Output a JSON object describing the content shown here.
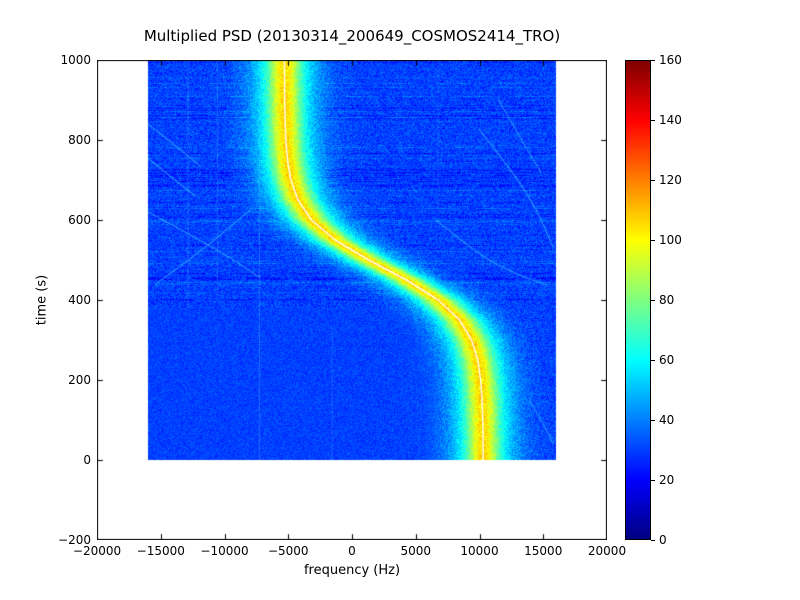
{
  "figure": {
    "title": "Multiplied PSD (20130314_200649_COSMOS2414_TRO)",
    "xlabel": "frequency (Hz)",
    "ylabel": "time (s)"
  },
  "axes": {
    "x_range": [
      -20000,
      20000
    ],
    "y_range": [
      -200,
      1000
    ],
    "x_tick_values": [
      -20000,
      -15000,
      -10000,
      -5000,
      0,
      5000,
      10000,
      15000,
      20000
    ],
    "x_tick_labels": [
      "−20000",
      "−15000",
      "−10000",
      "−5000",
      "0",
      "5000",
      "10000",
      "15000",
      "20000"
    ],
    "y_tick_values": [
      1000,
      800,
      600,
      400,
      200,
      0,
      -200
    ],
    "y_tick_labels": [
      "1000",
      "800",
      "600",
      "400",
      "200",
      "0",
      "−200"
    ]
  },
  "colorbar": {
    "min": 0,
    "max": 160,
    "tick_values": [
      0,
      20,
      40,
      60,
      80,
      100,
      120,
      140,
      160
    ],
    "tick_labels": [
      "0",
      "20",
      "40",
      "60",
      "80",
      "100",
      "120",
      "140",
      "160"
    ],
    "colormap": "jet",
    "colors": [
      "#00007f",
      "#0000ff",
      "#00ffff",
      "#ffff00",
      "#ff0000",
      "#7f0000"
    ]
  },
  "chart_data": {
    "type": "heatmap",
    "title": "Multiplied PSD (20130314_200649_COSMOS2414_TRO)",
    "xlabel": "frequency (Hz)",
    "ylabel": "time (s)",
    "colormap": "jet",
    "value_range": [
      0,
      160
    ],
    "x_extent": [
      -16000,
      16000
    ],
    "y_extent": [
      0,
      1000
    ],
    "background_level": 30,
    "noise_amplitude": 16,
    "band": {
      "description": "S-shaped satellite Doppler track, bright yellow-green core with cyan halo and thin white fitted curve",
      "core_amp": 36,
      "core_sigma_hz": 1150,
      "halo_amp": 40,
      "halo_sigma_hz": 2600
    },
    "white_curve": true,
    "ridge_points": [
      [
        0,
        10290
      ],
      [
        50,
        10280
      ],
      [
        100,
        10255
      ],
      [
        150,
        10200
      ],
      [
        200,
        10090
      ],
      [
        250,
        9860
      ],
      [
        300,
        9380
      ],
      [
        350,
        8440
      ],
      [
        400,
        6770
      ],
      [
        450,
        4270
      ],
      [
        480,
        2500
      ],
      [
        500,
        1310
      ],
      [
        550,
        -1340
      ],
      [
        600,
        -3170
      ],
      [
        650,
        -4240
      ],
      [
        700,
        -4790
      ],
      [
        750,
        -5060
      ],
      [
        800,
        -5190
      ],
      [
        850,
        -5250
      ],
      [
        900,
        -5280
      ],
      [
        950,
        -5290
      ],
      [
        1000,
        -5300
      ]
    ],
    "faint_traces": [
      [
        [
          840,
          -16000
        ],
        [
          780,
          -13600
        ],
        [
          735,
          -11900
        ]
      ],
      [
        [
          755,
          -16000
        ],
        [
          700,
          -13900
        ],
        [
          660,
          -12300
        ]
      ],
      [
        [
          620,
          -16000
        ],
        [
          555,
          -12200
        ],
        [
          495,
          -9000
        ],
        [
          455,
          -7200
        ]
      ],
      [
        [
          625,
          -8000
        ],
        [
          530,
          -11500
        ],
        [
          440,
          -15400
        ]
      ],
      [
        [
          825,
          10000
        ],
        [
          675,
          13800
        ],
        [
          530,
          15800
        ]
      ],
      [
        [
          900,
          11500
        ],
        [
          800,
          13300
        ],
        [
          720,
          14800
        ]
      ],
      [
        [
          600,
          6600
        ],
        [
          520,
          9600
        ],
        [
          468,
          12600
        ],
        [
          438,
          15200
        ]
      ],
      [
        [
          150,
          13900
        ],
        [
          85,
          15100
        ],
        [
          40,
          15800
        ]
      ]
    ],
    "vertical_lines": [
      {
        "f": -12900,
        "t": [
          380,
          1000
        ],
        "alpha": 0.3
      },
      {
        "f": -10600,
        "t": [
          400,
          1000
        ],
        "alpha": 0.28
      },
      {
        "f": -7300,
        "t": [
          0,
          1000
        ],
        "alpha": 0.32
      },
      {
        "f": 6700,
        "t": [
          620,
          1000
        ],
        "alpha": 0.22
      },
      {
        "f": -1600,
        "t": [
          0,
          330
        ],
        "alpha": 0.22
      }
    ]
  }
}
